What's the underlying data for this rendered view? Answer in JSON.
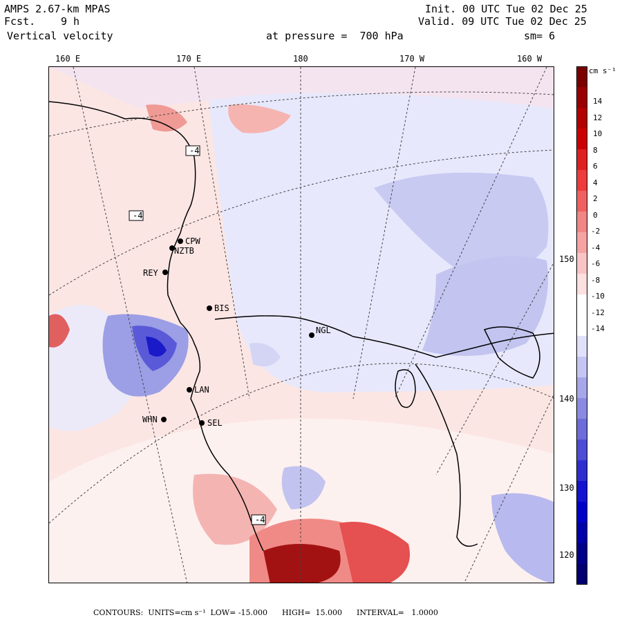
{
  "header": {
    "model": "AMPS 2.67-km MPAS",
    "fcst_label": "Fcst.",
    "fcst_value": "9 h",
    "field": "Vertical velocity",
    "init": "Init. 00 UTC Tue 02 Dec 25",
    "valid": "Valid. 09 UTC Tue 02 Dec 25",
    "level": "at pressure =  700 hPa",
    "smoothing": "sm= 6"
  },
  "longitude_labels_top": [
    "160 E",
    "170 E",
    "180",
    "170 W",
    "160 W"
  ],
  "longitude_labels_right": [
    "150 W",
    "140 W",
    "130 W",
    "120 W"
  ],
  "stations": [
    {
      "id": "CPW"
    },
    {
      "id": "NZTB"
    },
    {
      "id": "REY"
    },
    {
      "id": "BIS"
    },
    {
      "id": "NGL"
    },
    {
      "id": "LAN"
    },
    {
      "id": "WHN"
    },
    {
      "id": "SEL"
    }
  ],
  "contour_labels": [
    "-4",
    "-4",
    "-4"
  ],
  "colorbar": {
    "units": "cm s⁻¹",
    "ticks": [
      "14",
      "12",
      "10",
      "8",
      "6",
      "4",
      "2",
      "0",
      "-2",
      "-4",
      "-6",
      "-8",
      "-10",
      "-12",
      "-14"
    ],
    "colors": [
      "#7a0000",
      "#9a0000",
      "#b30000",
      "#cc0000",
      "#e02020",
      "#ee3b3b",
      "#f06060",
      "#f28585",
      "#f5a3a3",
      "#f9c4c4",
      "#fde0e0",
      "#ffffff",
      "#ffffff",
      "#e0e0fa",
      "#c5c5f3",
      "#a6a6ea",
      "#8a8ae2",
      "#6c6cda",
      "#4c4cd4",
      "#2e2ed0",
      "#1414d0",
      "#0000c8",
      "#0000a8",
      "#000088",
      "#000070"
    ]
  },
  "footer": {
    "text": "CONTOURS:  UNITS=cm s⁻¹  LOW= -15.000      HIGH=  15.000      INTERVAL=   1.0000"
  }
}
